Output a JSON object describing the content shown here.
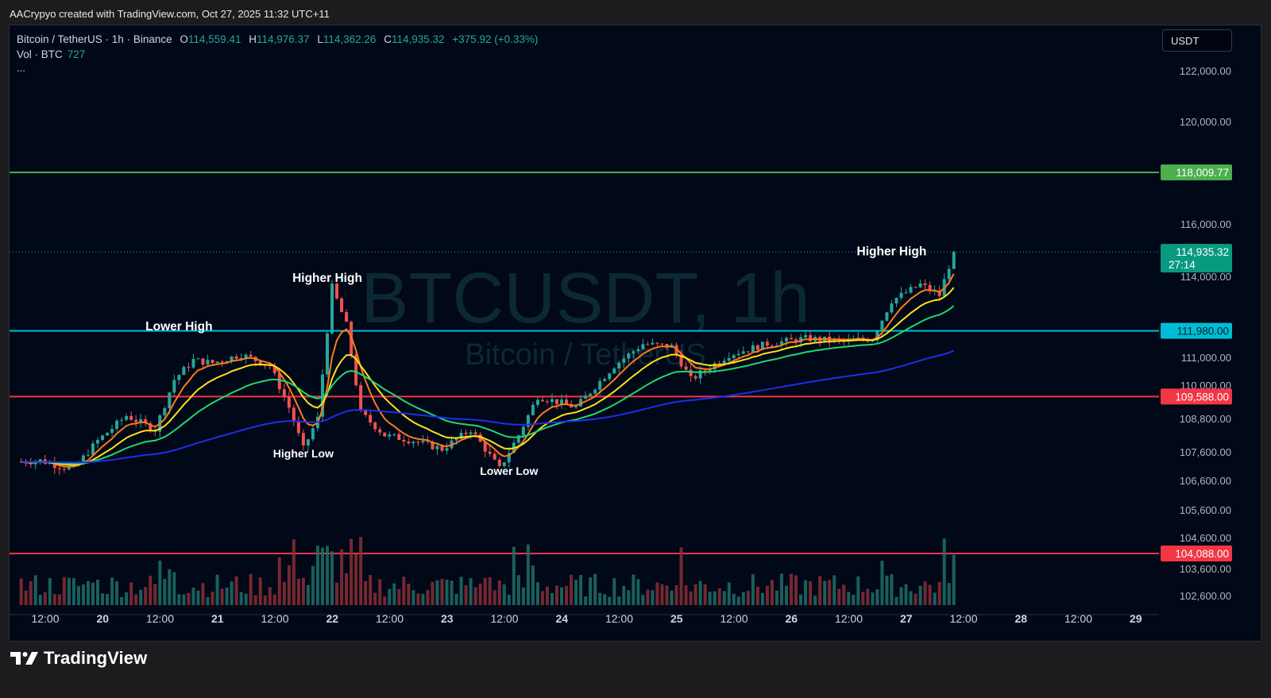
{
  "caption": "AACrypyo created with TradingView.com, Oct 27, 2025 11:32 UTC+11",
  "legend": {
    "pair": "Bitcoin / TetherUS · 1h · Binance",
    "o_label": "O",
    "o": "114,559.41",
    "h_label": "H",
    "h": "114,976.37",
    "l_label": "L",
    "l": "114,362.26",
    "c_label": "C",
    "c": "114,935.32",
    "change": "+375.92 (+0.33%)",
    "vol_label": "Vol · BTC",
    "vol_value": "727",
    "more": "..."
  },
  "currency_button": "USDT",
  "watermark": {
    "symbol": "BTCUSDT, 1h",
    "name": "Bitcoin / TetherUS"
  },
  "price_axis": [
    "122,000.00",
    "120,000.00",
    "116,000.00",
    "114,000.00",
    "111,000.00",
    "110,000.00",
    "108,800.00",
    "107,600.00",
    "106,600.00",
    "105,600.00",
    "104,600.00",
    "103,600.00",
    "102,600.00"
  ],
  "time_axis": [
    "12:00",
    "20",
    "12:00",
    "21",
    "12:00",
    "22",
    "12:00",
    "23",
    "12:00",
    "24",
    "12:00",
    "25",
    "12:00",
    "26",
    "12:00",
    "27",
    "12:00",
    "28",
    "12:00",
    "29"
  ],
  "levels": [
    {
      "label": "118,009.77",
      "color": "#4caf50"
    },
    {
      "label": "111,980.00",
      "color": "#00bcd4"
    },
    {
      "label": "109,588.00",
      "color": "#f23645"
    },
    {
      "label": "104,088.00",
      "color": "#f23645"
    }
  ],
  "last_price": {
    "price": "114,935.32",
    "countdown": "27:14",
    "color": "#089981"
  },
  "annotations": [
    "Lower High",
    "Higher High",
    "Higher Low",
    "Lower Low",
    "Higher High"
  ],
  "colors": {
    "up": "#26a69a",
    "down": "#ef5350",
    "ema_fast": "#ff7a1a",
    "ema_mid": "#ffe11a",
    "ema_slow": "#1fd86e",
    "ma_long": "#1d2fe8"
  },
  "brand": "TradingView",
  "chart_data": {
    "type": "candlestick",
    "symbol": "BTCUSDT",
    "interval": "1h",
    "series": [
      {
        "name": "Price",
        "points": [
          {
            "t": "19 08:00",
            "v": 107250
          },
          {
            "t": "19 12:00",
            "v": 107300
          },
          {
            "t": "19 16:00",
            "v": 107100
          },
          {
            "t": "19 19:00",
            "v": 107000
          },
          {
            "t": "20 00:00",
            "v": 108000
          },
          {
            "t": "20 06:00",
            "v": 108900
          },
          {
            "t": "20 12:00",
            "v": 108400
          },
          {
            "t": "20 16:00",
            "v": 110200
          },
          {
            "t": "20 20:00",
            "v": 110900
          },
          {
            "t": "21 00:00",
            "v": 110800
          },
          {
            "t": "21 06:00",
            "v": 111100
          },
          {
            "t": "21 12:00",
            "v": 110700
          },
          {
            "t": "21 16:00",
            "v": 109200
          },
          {
            "t": "21 19:00",
            "v": 107700
          },
          {
            "t": "21 22:00",
            "v": 108800
          },
          {
            "t": "22 01:00",
            "v": 113600
          },
          {
            "t": "22 04:00",
            "v": 112200
          },
          {
            "t": "22 07:00",
            "v": 109000
          },
          {
            "t": "22 12:00",
            "v": 108200
          },
          {
            "t": "22 18:00",
            "v": 108000
          },
          {
            "t": "23 00:00",
            "v": 107700
          },
          {
            "t": "23 06:00",
            "v": 108400
          },
          {
            "t": "23 12:00",
            "v": 107000
          },
          {
            "t": "23 16:00",
            "v": 108200
          },
          {
            "t": "23 20:00",
            "v": 109600
          },
          {
            "t": "24 04:00",
            "v": 109200
          },
          {
            "t": "24 12:00",
            "v": 110700
          },
          {
            "t": "24 18:00",
            "v": 111500
          },
          {
            "t": "25 00:00",
            "v": 111400
          },
          {
            "t": "25 04:00",
            "v": 110200
          },
          {
            "t": "25 12:00",
            "v": 111100
          },
          {
            "t": "25 20:00",
            "v": 111500
          },
          {
            "t": "26 04:00",
            "v": 111700
          },
          {
            "t": "26 12:00",
            "v": 111600
          },
          {
            "t": "26 18:00",
            "v": 111700
          },
          {
            "t": "26 22:00",
            "v": 113100
          },
          {
            "t": "27 04:00",
            "v": 113700
          },
          {
            "t": "27 08:00",
            "v": 113300
          },
          {
            "t": "27 11:00",
            "v": 114935
          }
        ]
      }
    ],
    "horizontal_levels": [
      118009.77,
      111980.0,
      109588.0,
      104088.0
    ],
    "annotations": [
      {
        "text": "Lower High",
        "t": "20 17:00",
        "v": 112000
      },
      {
        "text": "Higher High",
        "t": "22 00:00",
        "v": 113800
      },
      {
        "text": "Higher Low",
        "t": "21 19:00",
        "v": 107400
      },
      {
        "text": "Lower Low",
        "t": "23 14:00",
        "v": 106800
      },
      {
        "text": "Higher High",
        "t": "26 22:00",
        "v": 114800
      }
    ],
    "volume": {
      "name": "Vol · BTC",
      "last": 727
    }
  }
}
